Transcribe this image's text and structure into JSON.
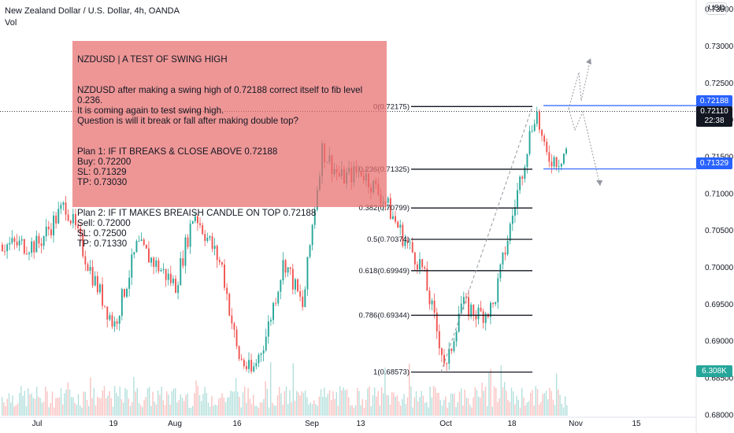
{
  "header": {
    "symbol_line": "New Zealand Dollar / U.S. Dollar, 4h, OANDA",
    "vol_label": "Vol"
  },
  "currency_button": "USD",
  "note": {
    "title": "NZDUSD | A TEST OF SWING HIGH",
    "para1": "NZDUSD after making a swing high of 0.72188 correct itself to fib level 0.236.\nIt is coming again to test swing high.\nQuestion is will it break or fall after making double top?",
    "plan1": "Plan 1: IF IT BREAKS & CLOSE ABOVE 0.72188\nBuy: 0.72200\nSL: 0.71329\nTP: 0.73030",
    "plan2": "Plan 2: IF IT MAKES BREAISH CANDLE ON TOP 0.72188\nSell: 0.72000\nSL: 0.72500\nTP: 0.71330"
  },
  "badges": {
    "resistance": "0.72188",
    "current_price": "0.72110",
    "countdown": "22:38",
    "support": "0.71329",
    "volume": "6.308K"
  },
  "colors": {
    "up": "#26a69a",
    "down": "#ef5350",
    "hline": "#2962ff",
    "note_bg": "#e86e6e",
    "volume_badge": "#26a69a"
  },
  "chart_data": {
    "type": "candlestick",
    "price_axis": {
      "ticks": [
        "0.73500",
        "0.73000",
        "0.72500",
        "0.72000",
        "0.71500",
        "0.71000",
        "0.70500",
        "0.70000",
        "0.69500",
        "0.69000",
        "0.68500",
        "0.68000"
      ],
      "ylim": [
        0.6795,
        0.7362
      ]
    },
    "time_axis": {
      "ticks": [
        "Jul",
        "19",
        "Aug",
        "16",
        "Sep",
        "13",
        "Oct",
        "18",
        "Nov",
        "15"
      ]
    },
    "path": [
      [
        "Jul",
        0.703
      ],
      [
        "Jul+6",
        0.7085
      ],
      [
        "Jul+12",
        0.6985
      ],
      [
        "19",
        0.692
      ],
      [
        "19+5",
        0.703
      ],
      [
        "Aug",
        0.6975
      ],
      [
        "Aug+4",
        0.7075
      ],
      [
        "Aug+10",
        0.7
      ],
      [
        "16",
        0.688
      ],
      [
        "16+3",
        0.6855
      ],
      [
        "16+6",
        0.6905
      ],
      [
        "16+10",
        0.701
      ],
      [
        "16+14",
        0.6945
      ],
      [
        "Sep",
        0.706
      ],
      [
        "Sep+2",
        0.716
      ],
      [
        "Sep+6",
        0.712
      ],
      [
        "13",
        0.713
      ],
      [
        "13+5",
        0.709
      ],
      [
        "13+9",
        0.704
      ],
      [
        "13+13",
        0.7
      ],
      [
        "13+16",
        0.692
      ],
      [
        "Oct",
        0.686
      ],
      [
        "Oct+3",
        0.695
      ],
      [
        "Oct+7",
        0.6935
      ],
      [
        "Oct+10",
        0.6945
      ],
      [
        "18",
        0.707
      ],
      [
        "18+3",
        0.716
      ],
      [
        "18+5",
        0.7215
      ],
      [
        "18+7",
        0.715
      ],
      [
        "18+10",
        0.7145
      ],
      [
        "18+13",
        0.7175
      ],
      [
        "18+15",
        0.7211
      ]
    ],
    "fibonacci": [
      {
        "label": "0(0.72175)",
        "value": 0.72175
      },
      {
        "label": "0.236(0.71325)",
        "value": 0.71325
      },
      {
        "label": "0.382(0.70799)",
        "value": 0.70799
      },
      {
        "label": "0.5(0.70374)",
        "value": 0.70374
      },
      {
        "label": "0.618(0.69949)",
        "value": 0.69949
      },
      {
        "label": "0.786(0.69344)",
        "value": 0.69344
      },
      {
        "label": "1(0.68573)",
        "value": 0.68573
      }
    ],
    "horizontal_lines": [
      0.72188,
      0.71329
    ],
    "current_price": 0.7211
  }
}
